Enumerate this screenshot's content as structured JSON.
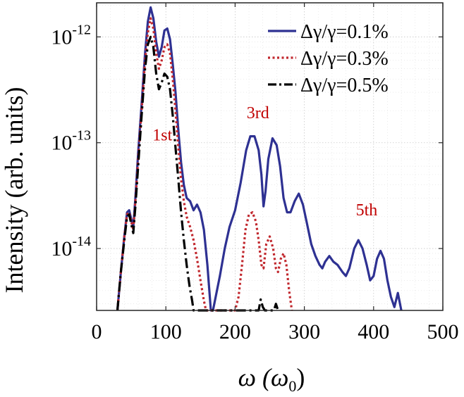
{
  "chart_data": {
    "type": "line",
    "x_scale": "linear",
    "y_scale": "log",
    "xlim": [
      0,
      500
    ],
    "ylim": [
      2.6e-15,
      2.1e-12
    ],
    "xticks": [
      0,
      100,
      200,
      300,
      400,
      500
    ],
    "xtick_labels": [
      "0",
      "100",
      "200",
      "300",
      "400",
      "500"
    ],
    "yticks": [
      1e-14,
      1e-13,
      1e-12
    ],
    "ytick_labels": [
      {
        "base": "10",
        "exp": "-14"
      },
      {
        "base": "10",
        "exp": "-13"
      },
      {
        "base": "10",
        "exp": "-12"
      }
    ],
    "xlabel": {
      "main": "ω (ω",
      "sub": "0",
      "end": ")"
    },
    "ylabel": "Intensity (arb. units)",
    "grid": true,
    "legend_position": "top-right",
    "series": [
      {
        "name": "Δγ/γ=0.1%",
        "color": "#2e3192",
        "style": "solid",
        "points": [
          [
            30,
            2.6e-15
          ],
          [
            35,
            6e-15
          ],
          [
            40,
            1.3e-14
          ],
          [
            44,
            2.2e-14
          ],
          [
            47,
            2.3e-14
          ],
          [
            50,
            1.9e-14
          ],
          [
            53,
            1.6e-14
          ],
          [
            56,
            3e-14
          ],
          [
            60,
            8e-14
          ],
          [
            65,
            2.3e-13
          ],
          [
            70,
            7e-13
          ],
          [
            74,
            1.4e-12
          ],
          [
            78,
            1.9e-12
          ],
          [
            82,
            1.5e-12
          ],
          [
            86,
            9e-13
          ],
          [
            90,
            6.5e-13
          ],
          [
            94,
            8e-13
          ],
          [
            98,
            1.15e-12
          ],
          [
            102,
            1.2e-12
          ],
          [
            106,
            9.5e-13
          ],
          [
            110,
            5.5e-13
          ],
          [
            114,
            3e-13
          ],
          [
            118,
            1.3e-13
          ],
          [
            122,
            6.5e-14
          ],
          [
            126,
            4e-14
          ],
          [
            130,
            3e-14
          ],
          [
            135,
            2.8e-14
          ],
          [
            140,
            2.3e-14
          ],
          [
            145,
            2.6e-14
          ],
          [
            150,
            2.2e-14
          ],
          [
            155,
            1.5e-14
          ],
          [
            160,
            7e-15
          ],
          [
            165,
            2.6e-15
          ],
          [
            168,
            2.6e-15
          ],
          [
            172,
            3.5e-15
          ],
          [
            178,
            5.5e-15
          ],
          [
            185,
            1e-14
          ],
          [
            192,
            1.6e-14
          ],
          [
            200,
            2.3e-14
          ],
          [
            208,
            4.2e-14
          ],
          [
            216,
            8.5e-14
          ],
          [
            222,
            1.15e-13
          ],
          [
            228,
            1.15e-13
          ],
          [
            234,
            8.5e-14
          ],
          [
            238,
            5e-14
          ],
          [
            241,
            2.5e-14
          ],
          [
            244,
            3.5e-14
          ],
          [
            248,
            7e-14
          ],
          [
            254,
            1.1e-13
          ],
          [
            260,
            9.5e-14
          ],
          [
            265,
            6e-14
          ],
          [
            270,
            3e-14
          ],
          [
            275,
            2.2e-14
          ],
          [
            280,
            2.2e-14
          ],
          [
            286,
            2.8e-14
          ],
          [
            292,
            3.3e-14
          ],
          [
            298,
            2.6e-14
          ],
          [
            304,
            1.7e-14
          ],
          [
            310,
            1.1e-14
          ],
          [
            316,
            8.5e-15
          ],
          [
            322,
            7e-15
          ],
          [
            326,
            6.5e-15
          ],
          [
            330,
            7.5e-15
          ],
          [
            336,
            8.5e-15
          ],
          [
            342,
            7.5e-15
          ],
          [
            348,
            7e-15
          ],
          [
            355,
            6e-15
          ],
          [
            360,
            5.5e-15
          ],
          [
            365,
            6.5e-15
          ],
          [
            372,
            1e-14
          ],
          [
            378,
            1.2e-14
          ],
          [
            384,
            1e-14
          ],
          [
            390,
            7e-15
          ],
          [
            395,
            5e-15
          ],
          [
            400,
            5.5e-15
          ],
          [
            405,
            8e-15
          ],
          [
            410,
            9.5e-15
          ],
          [
            415,
            8e-15
          ],
          [
            420,
            5e-15
          ],
          [
            425,
            3.5e-15
          ],
          [
            430,
            2.8e-15
          ],
          [
            435,
            3.8e-15
          ],
          [
            440,
            2.6e-15
          ]
        ]
      },
      {
        "name": "Δγ/γ=0.3%",
        "color": "#c1272d",
        "style": "dotted",
        "points": [
          [
            30,
            2.6e-15
          ],
          [
            35,
            6e-15
          ],
          [
            40,
            1.3e-14
          ],
          [
            44,
            2.1e-14
          ],
          [
            47,
            2.2e-14
          ],
          [
            50,
            1.8e-14
          ],
          [
            53,
            1.5e-14
          ],
          [
            56,
            2.8e-14
          ],
          [
            60,
            7e-14
          ],
          [
            65,
            2e-13
          ],
          [
            70,
            6e-13
          ],
          [
            74,
            1.1e-12
          ],
          [
            78,
            1.5e-12
          ],
          [
            82,
            1.2e-12
          ],
          [
            86,
            7e-13
          ],
          [
            90,
            5e-13
          ],
          [
            94,
            6e-13
          ],
          [
            98,
            8e-13
          ],
          [
            102,
            8.5e-13
          ],
          [
            106,
            7e-13
          ],
          [
            110,
            4e-13
          ],
          [
            114,
            2e-13
          ],
          [
            118,
            9e-14
          ],
          [
            122,
            4.5e-14
          ],
          [
            126,
            2.8e-14
          ],
          [
            130,
            2e-14
          ],
          [
            135,
            1.6e-14
          ],
          [
            140,
            1.2e-14
          ],
          [
            145,
            8e-15
          ],
          [
            150,
            5e-15
          ],
          [
            155,
            3.2e-15
          ],
          [
            158,
            2.6e-15
          ],
          [
            200,
            2.6e-15
          ],
          [
            205,
            3.5e-15
          ],
          [
            210,
            7e-15
          ],
          [
            215,
            1.5e-14
          ],
          [
            220,
            2.1e-14
          ],
          [
            225,
            2.2e-14
          ],
          [
            230,
            1.8e-14
          ],
          [
            234,
            1.2e-14
          ],
          [
            238,
            7e-15
          ],
          [
            241,
            6.5e-15
          ],
          [
            245,
            1.1e-14
          ],
          [
            250,
            1.3e-14
          ],
          [
            255,
            1e-14
          ],
          [
            259,
            6.5e-15
          ],
          [
            262,
            6e-15
          ],
          [
            266,
            8e-15
          ],
          [
            270,
            9e-15
          ],
          [
            274,
            7e-15
          ],
          [
            278,
            4e-15
          ],
          [
            282,
            2.6e-15
          ]
        ]
      },
      {
        "name": "Δγ/γ=0.5%",
        "color": "#000000",
        "style": "dashdot",
        "points": [
          [
            30,
            2.6e-15
          ],
          [
            35,
            6e-15
          ],
          [
            40,
            1.2e-14
          ],
          [
            44,
            2e-14
          ],
          [
            47,
            2.1e-14
          ],
          [
            50,
            1.7e-14
          ],
          [
            53,
            1.4e-14
          ],
          [
            56,
            2.5e-14
          ],
          [
            60,
            6e-14
          ],
          [
            65,
            1.8e-13
          ],
          [
            70,
            5e-13
          ],
          [
            74,
            8.5e-13
          ],
          [
            78,
            1e-12
          ],
          [
            82,
            8e-13
          ],
          [
            86,
            4.5e-13
          ],
          [
            90,
            3.2e-13
          ],
          [
            94,
            3.7e-13
          ],
          [
            98,
            4.5e-13
          ],
          [
            102,
            4.2e-13
          ],
          [
            106,
            3.2e-13
          ],
          [
            110,
            1.8e-13
          ],
          [
            114,
            9e-14
          ],
          [
            118,
            4.5e-14
          ],
          [
            122,
            2.2e-14
          ],
          [
            126,
            1.2e-14
          ],
          [
            130,
            7e-15
          ],
          [
            134,
            4.5e-15
          ],
          [
            138,
            3.2e-15
          ],
          [
            140,
            2.6e-15
          ],
          [
            234,
            2.6e-15
          ],
          [
            237,
            3.3e-15
          ],
          [
            240,
            2.8e-15
          ],
          [
            243,
            2.6e-15
          ],
          [
            256,
            2.6e-15
          ],
          [
            259,
            3e-15
          ],
          [
            262,
            2.6e-15
          ]
        ]
      }
    ],
    "annotations": [
      {
        "text": "1st",
        "x": 95,
        "y": 1.05e-13
      },
      {
        "text": "3rd",
        "x": 233,
        "y": 1.7e-13
      },
      {
        "text": "5th",
        "x": 390,
        "y": 2.05e-14
      }
    ],
    "annotation_color": "#c00000"
  }
}
